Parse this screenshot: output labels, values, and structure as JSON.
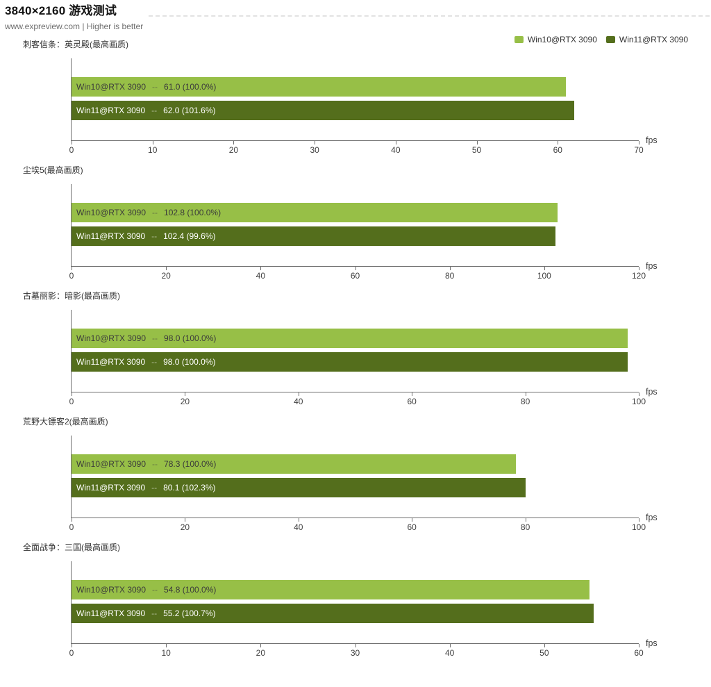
{
  "header": {
    "title": "3840×2160 游戏测试",
    "subtitle": "www.expreview.com | Higher is better"
  },
  "legend": {
    "items": [
      {
        "label": "Win10@RTX 3090",
        "color": "#97bf47"
      },
      {
        "label": "Win11@RTX 3090",
        "color": "#546e1c"
      }
    ]
  },
  "colors": {
    "series": [
      "#97bf47",
      "#546e1c"
    ],
    "bar_text": [
      "#3b3b3b",
      "#ffffff"
    ],
    "axis": "#6e6e6e",
    "tick_label": "#3f3f3f"
  },
  "labels": {
    "separator": "--"
  },
  "chart_data": [
    {
      "type": "bar",
      "title": "刺客信条：英灵殿(最高画质)",
      "unit": "fps",
      "xlim": [
        0,
        70
      ],
      "xticks": [
        0,
        10,
        20,
        30,
        40,
        50,
        60,
        70
      ],
      "series": [
        {
          "name": "Win10@RTX 3090",
          "value": 61.0,
          "label": "61.0 (100.0%)"
        },
        {
          "name": "Win11@RTX 3090",
          "value": 62.0,
          "label": "62.0 (101.6%)"
        }
      ]
    },
    {
      "type": "bar",
      "title": "尘埃5(最高画质)",
      "unit": "fps",
      "xlim": [
        0,
        120
      ],
      "xticks": [
        0,
        20,
        40,
        60,
        80,
        100,
        120
      ],
      "series": [
        {
          "name": "Win10@RTX 3090",
          "value": 102.8,
          "label": "102.8 (100.0%)"
        },
        {
          "name": "Win11@RTX 3090",
          "value": 102.4,
          "label": "102.4 (99.6%)"
        }
      ]
    },
    {
      "type": "bar",
      "title": "古墓丽影：暗影(最高画质)",
      "unit": "fps",
      "xlim": [
        0,
        100
      ],
      "xticks": [
        0,
        20,
        40,
        60,
        80,
        100
      ],
      "series": [
        {
          "name": "Win10@RTX 3090",
          "value": 98.0,
          "label": "98.0 (100.0%)"
        },
        {
          "name": "Win11@RTX 3090",
          "value": 98.0,
          "label": "98.0 (100.0%)"
        }
      ]
    },
    {
      "type": "bar",
      "title": "荒野大镖客2(最高画质)",
      "unit": "fps",
      "xlim": [
        0,
        100
      ],
      "xticks": [
        0,
        20,
        40,
        60,
        80,
        100
      ],
      "series": [
        {
          "name": "Win10@RTX 3090",
          "value": 78.3,
          "label": "78.3 (100.0%)"
        },
        {
          "name": "Win11@RTX 3090",
          "value": 80.1,
          "label": "80.1 (102.3%)"
        }
      ]
    },
    {
      "type": "bar",
      "title": "全面战争：三国(最高画质)",
      "unit": "fps",
      "xlim": [
        0,
        60
      ],
      "xticks": [
        0,
        10,
        20,
        30,
        40,
        50,
        60
      ],
      "series": [
        {
          "name": "Win10@RTX 3090",
          "value": 54.8,
          "label": "54.8 (100.0%)"
        },
        {
          "name": "Win11@RTX 3090",
          "value": 55.2,
          "label": "55.2 (100.7%)"
        }
      ]
    }
  ]
}
